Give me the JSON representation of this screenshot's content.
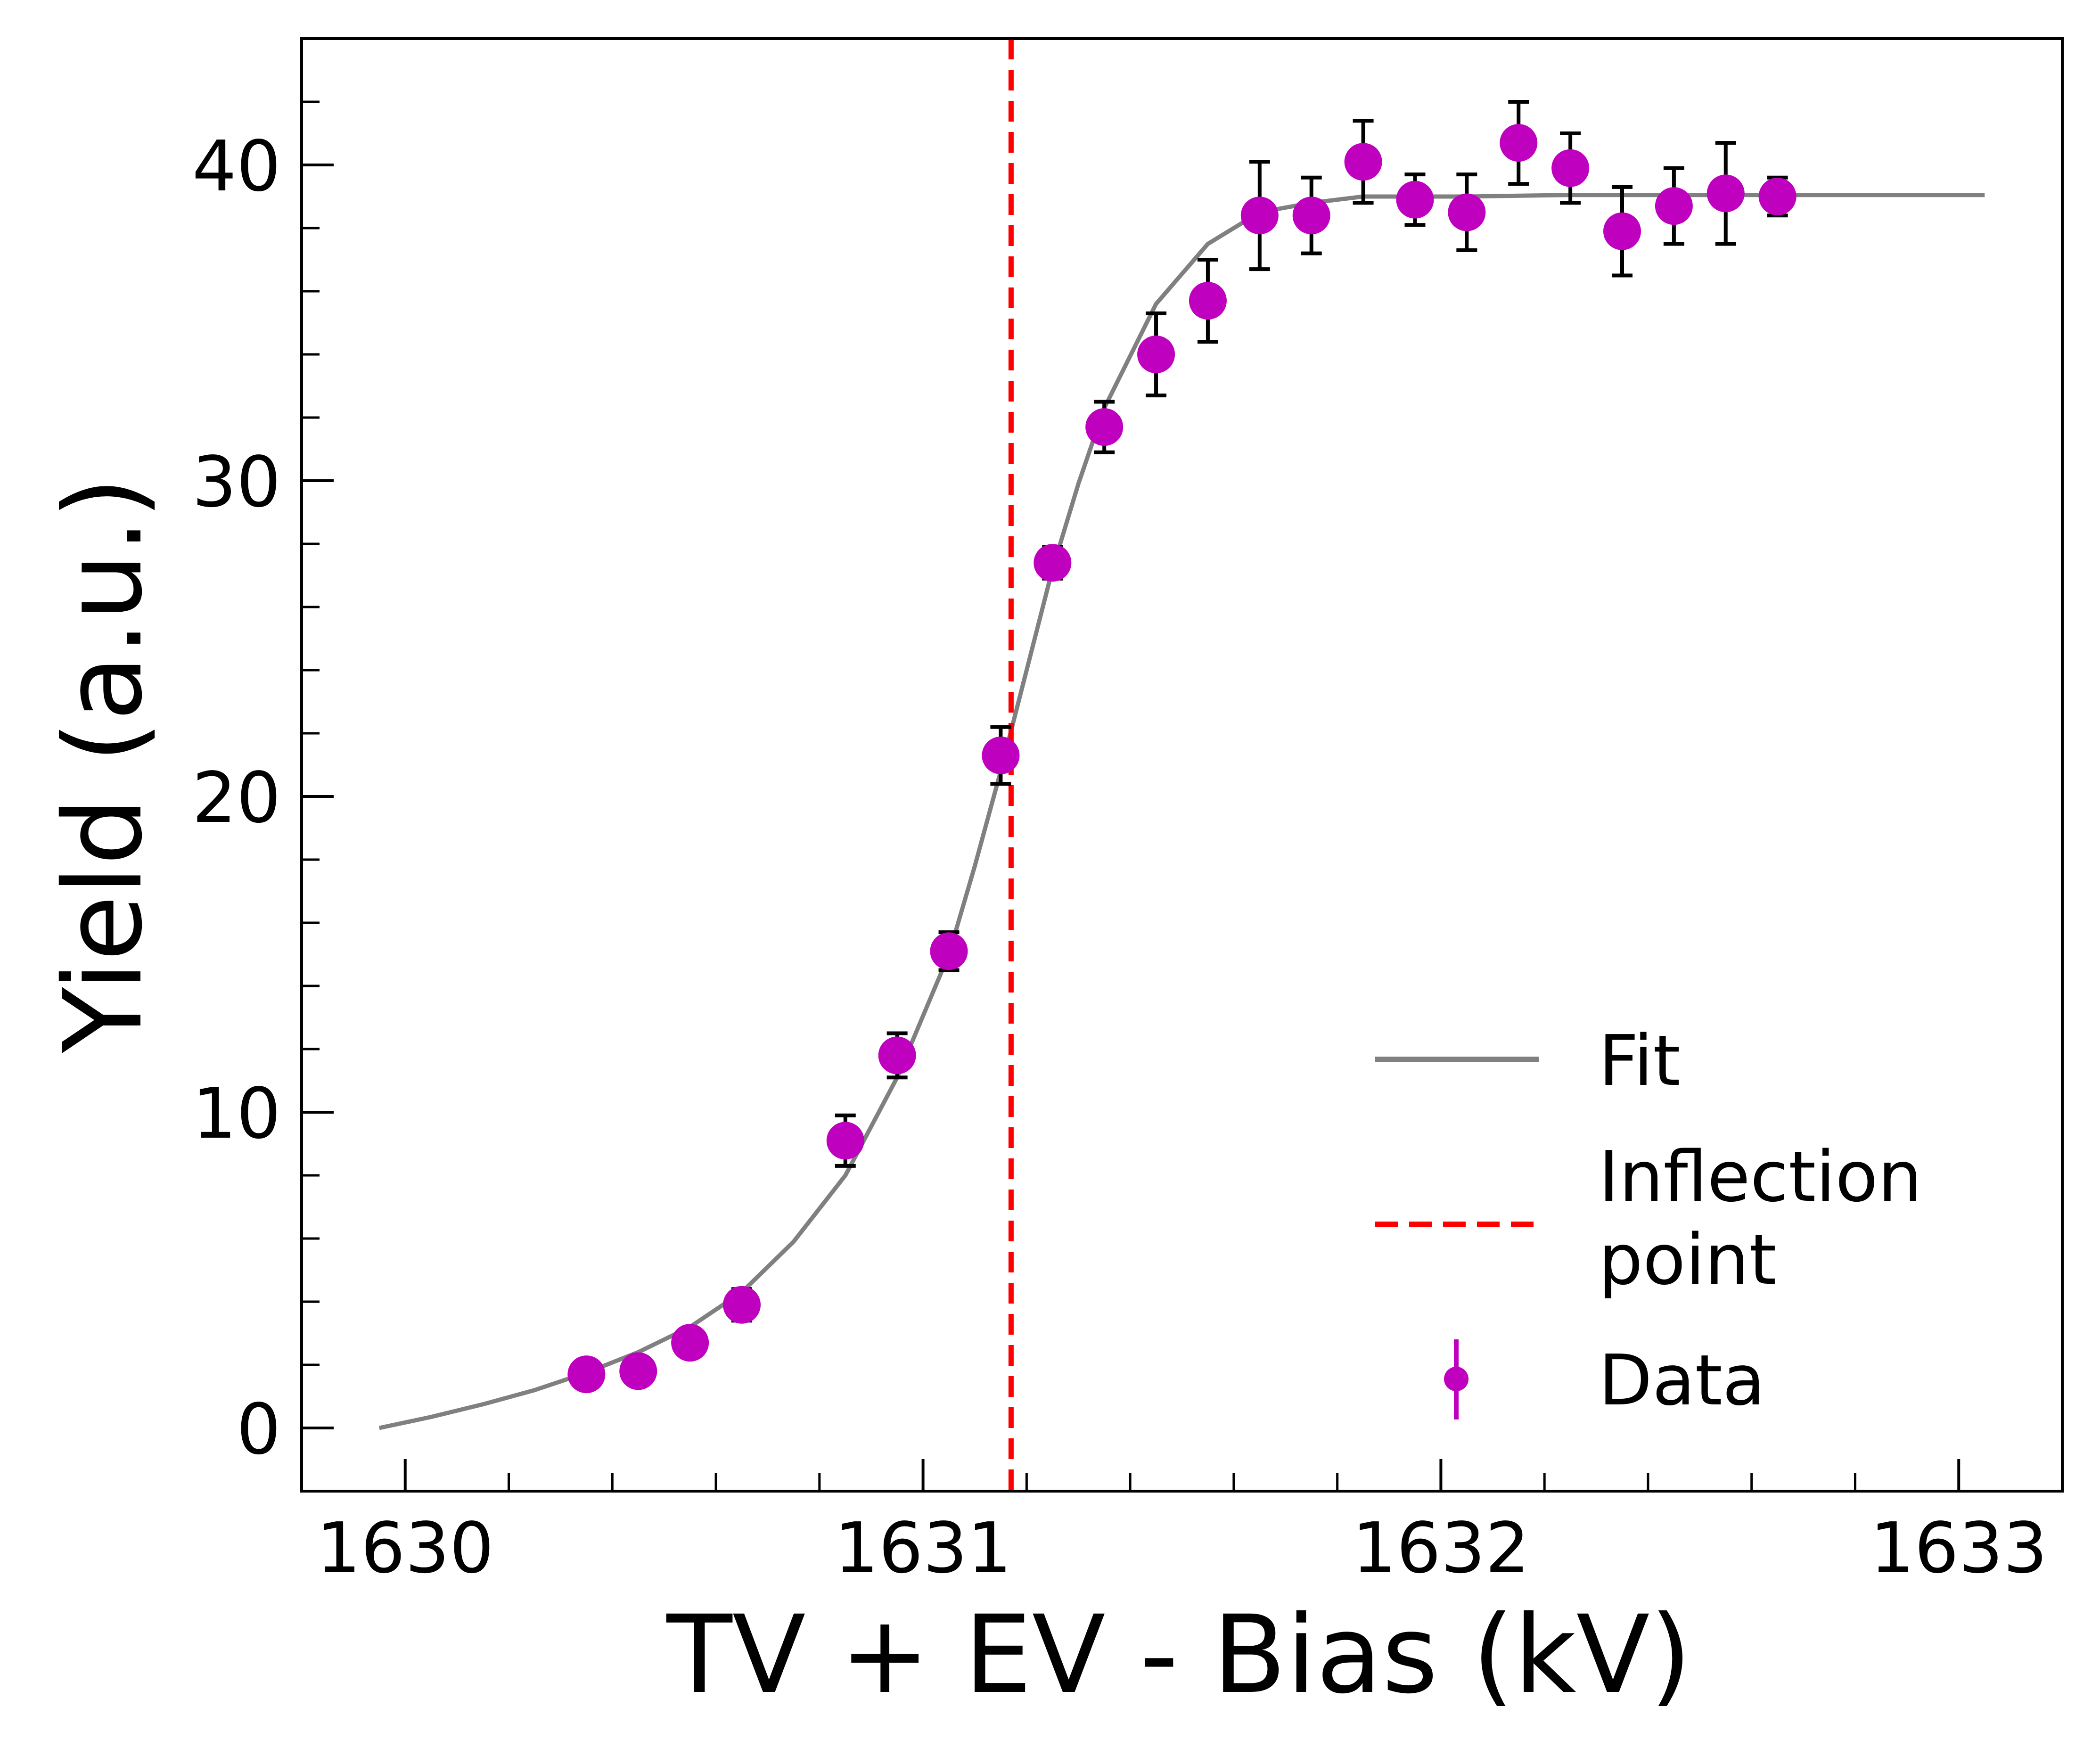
{
  "chart_data": {
    "type": "scatter",
    "xlabel": "TV + EV - Bias (kV)",
    "ylabel": "Yield (a.u.)",
    "xlim": [
      1629.8,
      1633.2
    ],
    "ylim": [
      -2,
      44
    ],
    "x_ticks": [
      1630,
      1631,
      1632,
      1633
    ],
    "y_ticks": [
      0,
      10,
      20,
      30,
      40
    ],
    "grid": false,
    "legend_position": "lower-right",
    "series": [
      {
        "name": "Data",
        "kind": "errorbar",
        "color": "#bf00bf",
        "error_color": "#000000",
        "points": [
          {
            "x": 1630.35,
            "y": 1.7,
            "err": 0.4
          },
          {
            "x": 1630.45,
            "y": 1.8,
            "err": 0.4
          },
          {
            "x": 1630.55,
            "y": 2.7,
            "err": 0.4
          },
          {
            "x": 1630.65,
            "y": 3.9,
            "err": 0.5
          },
          {
            "x": 1630.85,
            "y": 9.1,
            "err": 0.8
          },
          {
            "x": 1630.95,
            "y": 11.8,
            "err": 0.7
          },
          {
            "x": 1631.05,
            "y": 15.1,
            "err": 0.6
          },
          {
            "x": 1631.15,
            "y": 21.3,
            "err": 0.9
          },
          {
            "x": 1631.25,
            "y": 27.4,
            "err": 0.5
          },
          {
            "x": 1631.35,
            "y": 31.7,
            "err": 0.8
          },
          {
            "x": 1631.45,
            "y": 34.0,
            "err": 1.3
          },
          {
            "x": 1631.55,
            "y": 35.7,
            "err": 1.3
          },
          {
            "x": 1631.65,
            "y": 38.4,
            "err": 1.7
          },
          {
            "x": 1631.75,
            "y": 38.4,
            "err": 1.2
          },
          {
            "x": 1631.85,
            "y": 40.1,
            "err": 1.3
          },
          {
            "x": 1631.95,
            "y": 38.9,
            "err": 0.8
          },
          {
            "x": 1632.05,
            "y": 38.5,
            "err": 1.2
          },
          {
            "x": 1632.15,
            "y": 40.7,
            "err": 1.3
          },
          {
            "x": 1632.25,
            "y": 39.9,
            "err": 1.1
          },
          {
            "x": 1632.35,
            "y": 37.9,
            "err": 1.4
          },
          {
            "x": 1632.45,
            "y": 38.7,
            "err": 1.2
          },
          {
            "x": 1632.55,
            "y": 39.1,
            "err": 1.6
          },
          {
            "x": 1632.65,
            "y": 39.0,
            "err": 0.6
          }
        ]
      },
      {
        "name": "Fit",
        "kind": "line",
        "color": "#808080",
        "x": [
          1629.95,
          1630.05,
          1630.15,
          1630.25,
          1630.35,
          1630.45,
          1630.55,
          1630.65,
          1630.75,
          1630.85,
          1630.95,
          1631.05,
          1631.1,
          1631.15,
          1631.2,
          1631.25,
          1631.3,
          1631.35,
          1631.45,
          1631.55,
          1631.65,
          1631.75,
          1631.85,
          1631.95,
          1632.05,
          1632.25,
          1632.55,
          1632.85,
          1633.05
        ],
        "y": [
          0.0,
          0.35,
          0.75,
          1.2,
          1.75,
          2.4,
          3.2,
          4.3,
          5.9,
          8.0,
          11.1,
          15.0,
          17.8,
          20.8,
          24.0,
          27.2,
          29.9,
          32.3,
          35.6,
          37.5,
          38.5,
          38.8,
          39.0,
          39.0,
          39.0,
          39.05,
          39.05,
          39.05,
          39.05
        ]
      },
      {
        "name": "Inflection point",
        "kind": "vline",
        "color": "#ff0000",
        "style": "dashed",
        "x": 1631.17
      }
    ],
    "legend": [
      "Fit",
      "Inflection\npoint",
      "Data"
    ]
  },
  "legend_text": {
    "fit": "Fit",
    "inflection_line1": "Inflection",
    "inflection_line2": "point",
    "data": "Data"
  },
  "axes": {
    "xlabel": "TV + EV - Bias (kV)",
    "ylabel": "Yield (a.u.)"
  }
}
